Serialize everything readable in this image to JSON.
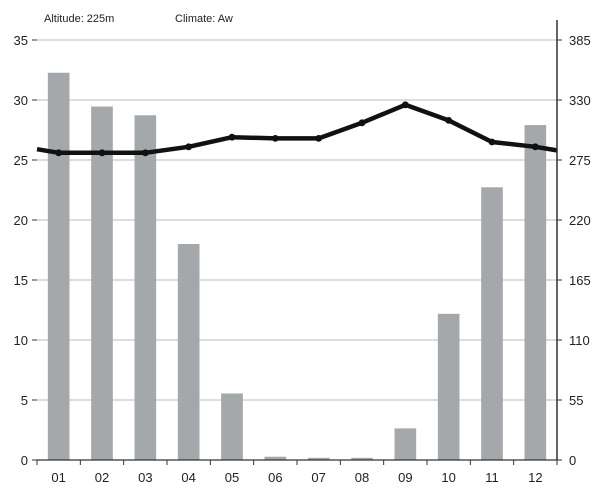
{
  "header": {
    "altitude": "Altitude: 225m",
    "climate": "Climate: Aw"
  },
  "colors": {
    "bar": "#a5a8ab",
    "line": "#111111",
    "grid": "#bbbbbb",
    "axis": "#333333"
  },
  "chart_data": {
    "type": "bar+line",
    "categories": [
      "01",
      "02",
      "03",
      "04",
      "05",
      "06",
      "07",
      "08",
      "09",
      "10",
      "11",
      "12"
    ],
    "series": [
      {
        "type": "bar",
        "axis": "right",
        "values": [
          355,
          324,
          316,
          198,
          61,
          3,
          2,
          2,
          29,
          134,
          250,
          307
        ]
      },
      {
        "type": "line",
        "axis": "left",
        "values": [
          25.6,
          25.6,
          25.6,
          26.1,
          26.9,
          26.8,
          26.8,
          28.1,
          29.6,
          28.3,
          26.5,
          26.1
        ],
        "start": 25.9,
        "end": 25.8
      }
    ],
    "y_left": {
      "ylim": [
        0,
        35
      ],
      "ticks": [
        0,
        5,
        10,
        15,
        20,
        25,
        30,
        35
      ]
    },
    "y_right": {
      "ylim": [
        0,
        385
      ],
      "ticks": [
        0,
        55,
        110,
        165,
        220,
        275,
        330,
        385
      ]
    },
    "grid": true,
    "legend": "none"
  }
}
